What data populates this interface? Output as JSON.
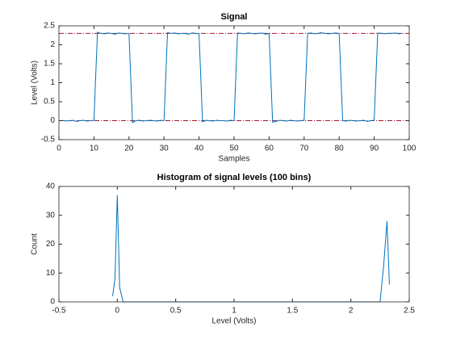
{
  "chart_data": [
    {
      "type": "line",
      "title": "Signal",
      "xlabel": "Samples",
      "ylabel": "Level (Volts)",
      "x": [
        1,
        2,
        3,
        4,
        5,
        6,
        7,
        8,
        9,
        10,
        11,
        12,
        13,
        14,
        15,
        16,
        17,
        18,
        19,
        20,
        21,
        22,
        23,
        24,
        25,
        26,
        27,
        28,
        29,
        30,
        31,
        32,
        33,
        34,
        35,
        36,
        37,
        38,
        39,
        40,
        41,
        42,
        43,
        44,
        45,
        46,
        47,
        48,
        49,
        50,
        51,
        52,
        53,
        54,
        55,
        56,
        57,
        58,
        59,
        60,
        61,
        62,
        63,
        64,
        65,
        66,
        67,
        68,
        69,
        70,
        71,
        72,
        73,
        74,
        75,
        76,
        77,
        78,
        79,
        80,
        81,
        82,
        83,
        84,
        85,
        86,
        87,
        88,
        89,
        90,
        91,
        92,
        93,
        94,
        95,
        96,
        97,
        98
      ],
      "series": [
        {
          "color": "#0072bd",
          "values": [
            0.01,
            -0.01,
            0,
            0.01,
            -0.02,
            0,
            0.01,
            -0.01,
            0,
            0.01,
            2.33,
            2.3,
            2.29,
            2.31,
            2.3,
            2.28,
            2.31,
            2.3,
            2.29,
            2.3,
            -0.05,
            0,
            0.01,
            -0.01,
            0,
            0.01,
            0,
            -0.01,
            0.01,
            0,
            2.32,
            2.3,
            2.31,
            2.29,
            2.3,
            2.3,
            2.28,
            2.31,
            2.3,
            2.29,
            -0.03,
            0.01,
            0,
            -0.01,
            0.01,
            0,
            0,
            -0.01,
            0.01,
            0,
            2.31,
            2.3,
            2.29,
            2.31,
            2.3,
            2.29,
            2.3,
            2.31,
            2.28,
            2.3,
            -0.04,
            -0.02,
            0.01,
            0,
            -0.01,
            0.01,
            0,
            -0.01,
            0,
            0.01,
            2.3,
            2.31,
            2.29,
            2.3,
            2.32,
            2.3,
            2.29,
            2.3,
            2.31,
            2.3,
            0,
            -0.01,
            0.01,
            0,
            -0.01,
            0,
            0.01,
            -0.02,
            0,
            0.01,
            2.31,
            2.3,
            2.29,
            2.3,
            2.3,
            2.31,
            2.29,
            2.3
          ]
        }
      ],
      "reference_lines": [
        {
          "value": 2.3,
          "color": "#a2142f"
        },
        {
          "value": 0,
          "color": "#a2142f"
        }
      ],
      "xlim": [
        0,
        100
      ],
      "xticks": [
        0,
        10,
        20,
        30,
        40,
        50,
        60,
        70,
        80,
        90,
        100
      ],
      "ylim": [
        -0.5,
        2.5
      ],
      "yticks": [
        -0.5,
        0,
        0.5,
        1,
        1.5,
        2,
        2.5
      ]
    },
    {
      "type": "line",
      "title": "Histogram of signal levels (100 bins)",
      "xlabel": "Level (Volts)",
      "ylabel": "Count",
      "x": [
        -0.04,
        -0.02,
        0,
        0.02,
        0.05,
        2.25,
        2.28,
        2.31,
        2.33
      ],
      "series": [
        {
          "color": "#0072bd",
          "values": [
            2,
            8,
            37,
            5,
            0,
            0,
            12,
            28,
            6
          ]
        }
      ],
      "xlim": [
        -0.5,
        2.5
      ],
      "xticks": [
        -0.5,
        0,
        0.5,
        1,
        1.5,
        2,
        2.5
      ],
      "ylim": [
        0,
        40
      ],
      "yticks": [
        0,
        10,
        20,
        30,
        40
      ]
    }
  ]
}
